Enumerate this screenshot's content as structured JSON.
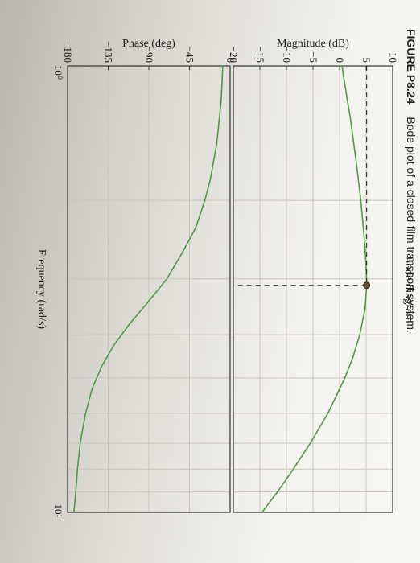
{
  "caption": {
    "figure_label": "FIGURE P8.24",
    "text": "Bode plot of a closed-film transport system."
  },
  "colors": {
    "curve": "#4f9a43",
    "marker": "#6b4a2a",
    "grid": "#c8c5bd",
    "frame": "#333333"
  },
  "chart_data": [
    {
      "type": "line",
      "title": "Bode diagram",
      "ylabel": "Magnitude (dB)",
      "xscale": "log",
      "xlim": [
        1,
        10
      ],
      "ylim": [
        -20,
        10
      ],
      "yticks": [
        10,
        5,
        0,
        -5,
        -10,
        -15,
        -20
      ],
      "grid": true,
      "series": [
        {
          "x": [
            1,
            1.05,
            1.1,
            1.2,
            1.3,
            1.5,
            1.7,
            2,
            2.4,
            2.8,
            3.1,
            3.5,
            4,
            4.5,
            5,
            6,
            7,
            8,
            9,
            10
          ],
          "values": [
            0.5,
            0.7,
            1.0,
            1.5,
            2.0,
            2.7,
            3.3,
            4.0,
            4.6,
            5.0,
            5.1,
            4.8,
            3.8,
            2.5,
            1.0,
            -2.2,
            -5.5,
            -8.7,
            -11.7,
            -14.6
          ]
        }
      ],
      "annotations": [
        {
          "type": "peak-marker",
          "x": 3.1,
          "y": 5.1,
          "dashed_guides": true
        }
      ]
    },
    {
      "type": "line",
      "ylabel": "Phase (deg)",
      "xlabel": "Frequency (rad/s)",
      "xscale": "log",
      "xlim": [
        1,
        10
      ],
      "ylim": [
        -180,
        0
      ],
      "yticks": [
        0,
        -45,
        -90,
        -135,
        -180
      ],
      "xtick_labels": [
        "10⁰",
        "10¹"
      ],
      "grid": true,
      "series": [
        {
          "x": [
            1,
            1.2,
            1.5,
            1.8,
            2,
            2.3,
            2.6,
            3,
            3.4,
            3.8,
            4.2,
            4.7,
            5.3,
            6,
            7,
            8,
            9,
            10
          ],
          "values": [
            -8,
            -10,
            -15,
            -22,
            -28,
            -38,
            -52,
            -70,
            -92,
            -112,
            -128,
            -142,
            -153,
            -160,
            -166,
            -169,
            -171,
            -173
          ]
        }
      ]
    }
  ]
}
